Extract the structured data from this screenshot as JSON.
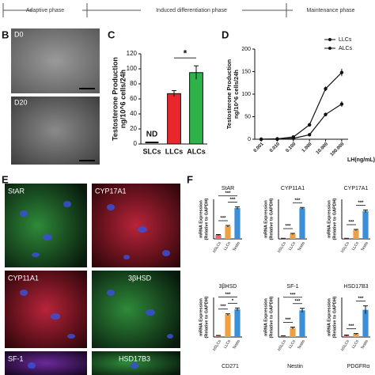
{
  "timeline": {
    "phases": [
      "Adaptive phase",
      "Induced differentiation phase",
      "Maintenance phase"
    ]
  },
  "panel_letters": [
    "B",
    "C",
    "D",
    "E",
    "F"
  ],
  "microscopy_b": {
    "labels": [
      "D0",
      "D20"
    ]
  },
  "microscopy_e": {
    "labels": [
      "StAR",
      "CYP17A1",
      "CYP11A1",
      "3βHSD",
      "SF-1",
      "HSD17B3"
    ]
  },
  "partial_titles": [
    "CD271",
    "Nestin",
    "PDGFRα"
  ],
  "chart_data": [
    {
      "type": "bar",
      "ylabel": [
        "Testosterone Production",
        "ng/10^6 cells/24h"
      ],
      "categories": [
        "SLCs",
        "LLCs",
        "ALCs"
      ],
      "values": [
        null,
        67,
        95
      ],
      "errors": [
        null,
        4,
        9
      ],
      "value_labels": [
        "ND",
        null,
        null
      ],
      "colors": [
        "#000000",
        "#e8262b",
        "#2db34a"
      ],
      "ylim": [
        0,
        120
      ],
      "yticks": [
        0,
        20,
        40,
        60,
        80,
        100,
        120
      ],
      "significance": [
        "*"
      ]
    },
    {
      "type": "line",
      "ylabel": [
        "Testosterone Production",
        "ng/10^6 cells/24h"
      ],
      "xlabel": "LH(ng/mL)",
      "x": [
        0.001,
        0.01,
        0.1,
        1,
        10,
        100
      ],
      "xscale": "log",
      "xlim": [
        0.0004,
        250
      ],
      "xticks": [
        {
          "value": 0.001,
          "label": "0.001"
        },
        {
          "value": 0.01,
          "label": "0.010"
        },
        {
          "value": 0.1,
          "label": "0.100"
        },
        {
          "value": 1,
          "label": "1.000"
        },
        {
          "value": 10,
          "label": "10.000"
        },
        {
          "value": 100,
          "label": "100.000"
        }
      ],
      "ylim": [
        0,
        200
      ],
      "yticks": [
        0,
        50,
        100,
        150,
        200
      ],
      "legend": "upper-right",
      "series": [
        {
          "name": "LLCs",
          "color": "#111111",
          "values": [
            0,
            0,
            2,
            10,
            55,
            78
          ],
          "errors": [
            0,
            0,
            1,
            2,
            4,
            6
          ]
        },
        {
          "name": "ALCs",
          "color": "#111111",
          "values": [
            0,
            1,
            5,
            32,
            112,
            148
          ],
          "errors": [
            0,
            0,
            1,
            3,
            5,
            8
          ]
        }
      ]
    },
    {
      "type": "bar",
      "title": "StAR",
      "ylabel": [
        "mRNA Expression",
        "(Relative to GAPDH)"
      ],
      "categories": [
        "hSLCs",
        "LLCs",
        "Testis"
      ],
      "values": [
        0.05,
        0.16,
        0.39
      ],
      "errors": [
        0.005,
        0.01,
        0.015
      ],
      "colors": [
        "#e06a78",
        "#f0a040",
        "#3a8fd8"
      ],
      "ylim": [
        0,
        0.5
      ],
      "significance": [
        "***",
        "***",
        "***"
      ]
    },
    {
      "type": "bar",
      "title": "CYP11A1",
      "ylabel": [
        "mRNA Expression",
        "(Relative to GAPDH)"
      ],
      "categories": [
        "hSLCs",
        "LLCs",
        "Testis"
      ],
      "values": [
        0.002,
        0.025,
        0.155
      ],
      "errors": [
        0.001,
        0.003,
        0.004
      ],
      "colors": [
        "#e06a78",
        "#f0a040",
        "#3a8fd8"
      ],
      "ylim": [
        0,
        0.2
      ],
      "significance": [
        "***",
        "***"
      ]
    },
    {
      "type": "bar",
      "title": "CYP17A1",
      "ylabel": [
        "mRNA Expression",
        "(Relative to GAPDH)"
      ],
      "categories": [
        "hSLCs",
        "LLCs",
        "Testis"
      ],
      "values": [
        0.002,
        0.045,
        0.14
      ],
      "errors": [
        0.001,
        0.003,
        0.006
      ],
      "colors": [
        "#e06a78",
        "#f0a040",
        "#3a8fd8"
      ],
      "ylim": [
        0,
        0.2
      ],
      "significance": [
        "***",
        "***"
      ]
    },
    {
      "type": "bar",
      "title": "3βHSD",
      "ylabel": [
        "mRNA Expression",
        "(Relative to GAPDH)"
      ],
      "categories": [
        "hSLCs",
        "LLCs",
        "Testis"
      ],
      "values": [
        0.0005,
        0.0085,
        0.0105
      ],
      "errors": [
        0.0001,
        0.0003,
        0.0005
      ],
      "colors": [
        "#e06a78",
        "#f0a040",
        "#3a8fd8"
      ],
      "ylim": [
        0,
        0.015
      ],
      "significance": [
        "***",
        "*",
        "***"
      ]
    },
    {
      "type": "bar",
      "title": "SF-1",
      "ylabel": [
        "mRNA Expression",
        "(Relative to GAPDH)"
      ],
      "categories": [
        "hSLCs",
        "LLCs",
        "Testis"
      ],
      "values": [
        0.001,
        0.009,
        0.027
      ],
      "errors": [
        0.0002,
        0.001,
        0.002
      ],
      "colors": [
        "#e06a78",
        "#f0a040",
        "#3a8fd8"
      ],
      "ylim": [
        0,
        0.04
      ],
      "significance": [
        "***",
        "***",
        "***"
      ]
    },
    {
      "type": "bar",
      "title": "HSD17B3",
      "ylabel": [
        "mRNA Expression",
        "(Relative to GAPDH)"
      ],
      "categories": [
        "hSLCs",
        "LLCs",
        "Testis"
      ],
      "values": [
        0.0003,
        0.0006,
        0.0055
      ],
      "errors": [
        0.0001,
        0.0001,
        0.0008
      ],
      "colors": [
        "#e06a78",
        "#f0a040",
        "#3a8fd8"
      ],
      "ylim": [
        0,
        0.008
      ],
      "significance": [
        "***",
        "***"
      ]
    }
  ]
}
